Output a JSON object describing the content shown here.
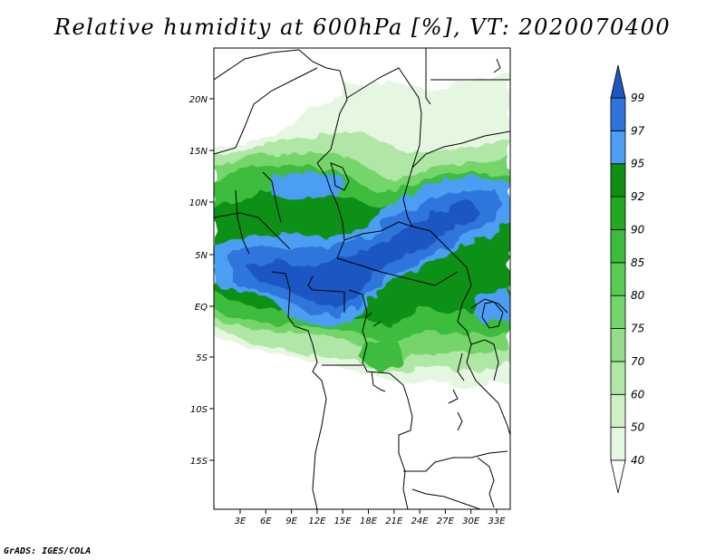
{
  "title": "Relative humidity at 600hPa [%], VT: 2020070400",
  "credit": "GrADS: IGES/COLA",
  "map": {
    "lon_range": [
      0,
      35
    ],
    "lat_range": [
      -20,
      24
    ],
    "lat_ticks": [
      "20N",
      "15N",
      "10N",
      "5N",
      "EQ",
      "5S",
      "10S",
      "15S"
    ],
    "lon_ticks": [
      "3E",
      "6E",
      "9E",
      "12E",
      "15E",
      "18E",
      "21E",
      "24E",
      "27E",
      "30E",
      "33E"
    ]
  },
  "colorbar": {
    "levels": [
      "40",
      "50",
      "60",
      "70",
      "75",
      "80",
      "85",
      "90",
      "92",
      "95",
      "97",
      "99"
    ],
    "colors": [
      "#e6f7e1",
      "#cdf0c5",
      "#b0e6a6",
      "#93dd88",
      "#75d56b",
      "#58cc52",
      "#3cbc3c",
      "#24a824",
      "#0f9012",
      "#4b9ef2",
      "#2f74dc",
      "#1f56c2"
    ]
  }
}
